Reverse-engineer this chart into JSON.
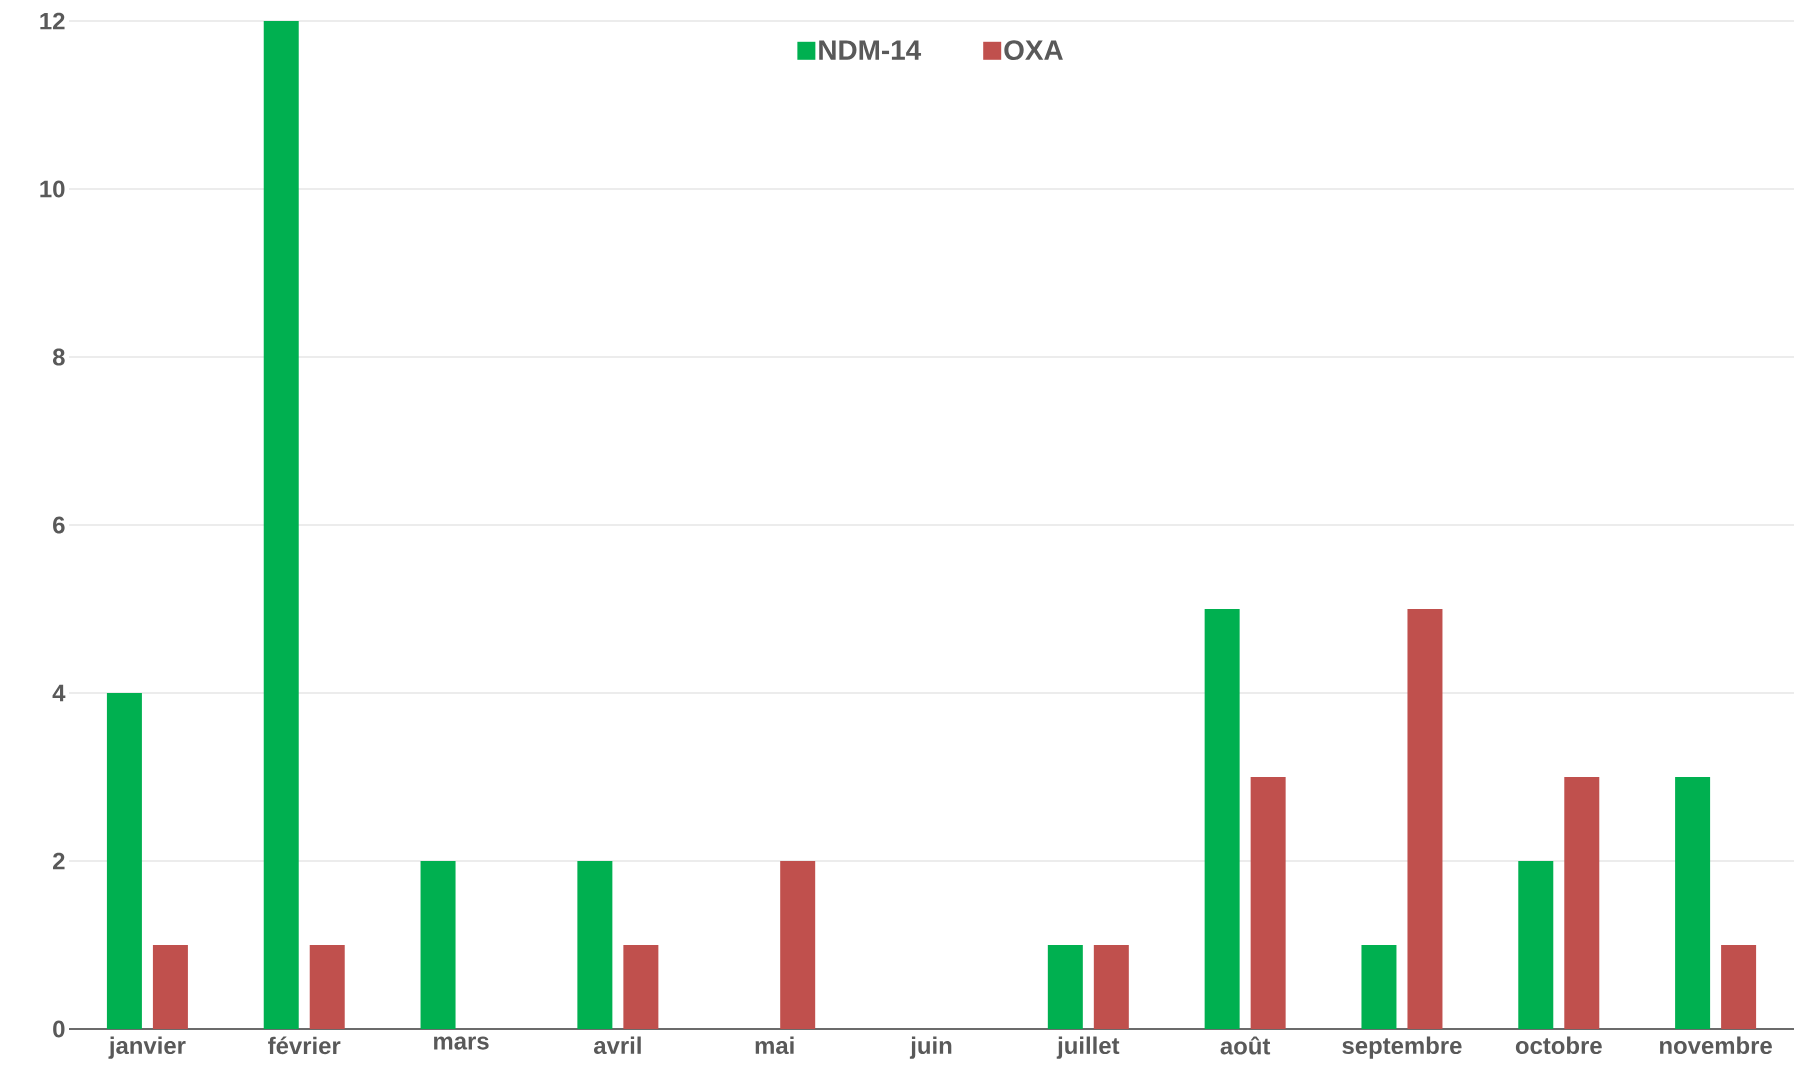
{
  "chart_data": {
    "type": "bar",
    "categories": [
      "janvier",
      "février",
      "mars",
      "avril",
      "mai",
      "juin",
      "juillet",
      "août",
      "septembre",
      "octobre",
      "novembre"
    ],
    "series": [
      {
        "name": "NDM-14",
        "color": "#00b050",
        "values": [
          4,
          12,
          2,
          2,
          0,
          0,
          1,
          5,
          1,
          2,
          3
        ]
      },
      {
        "name": "OXA",
        "color": "#c0504d",
        "values": [
          1,
          1,
          0,
          1,
          2,
          0,
          1,
          3,
          5,
          3,
          1
        ]
      }
    ],
    "ylim": [
      0,
      12
    ],
    "yticks": [
      0,
      2,
      4,
      6,
      8,
      10,
      12
    ],
    "grid": "y",
    "legend": "top"
  }
}
